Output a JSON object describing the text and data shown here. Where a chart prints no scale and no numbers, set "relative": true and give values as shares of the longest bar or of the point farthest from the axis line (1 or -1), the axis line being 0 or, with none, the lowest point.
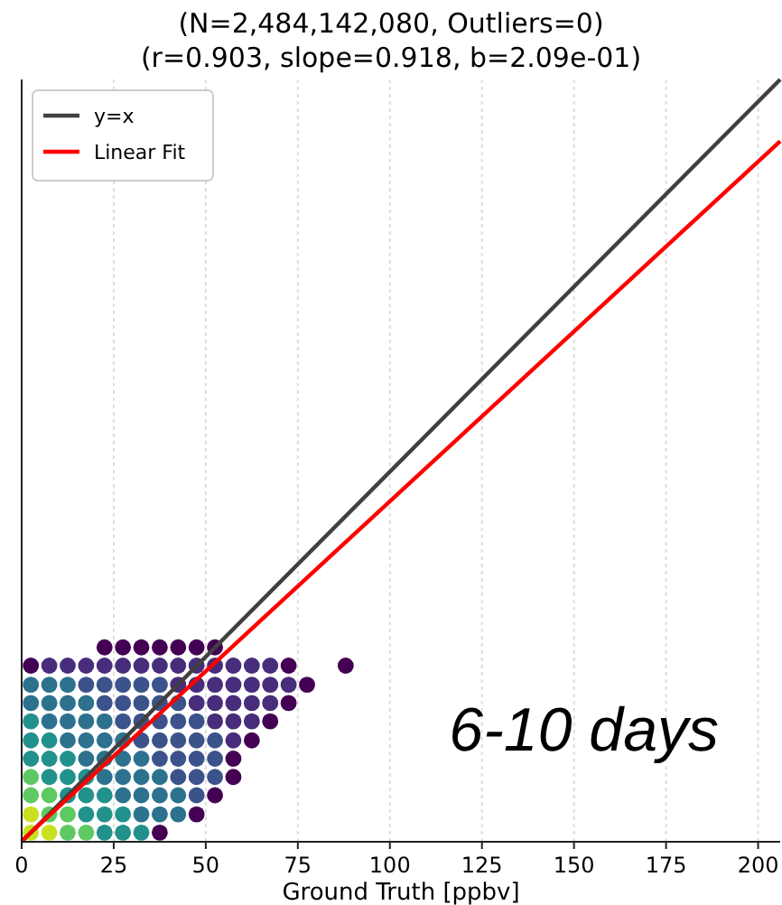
{
  "chart_data": {
    "type": "scatter",
    "title": "(N=2,484,142,080, Outliers=0)",
    "subtitle": "(r=0.903, slope=0.918, b=2.09e-01)",
    "xlabel": "Ground Truth [ppbv]",
    "annotations": [
      "6-10 days"
    ],
    "xlim": [
      0,
      206
    ],
    "xticks": [
      0,
      25,
      50,
      75,
      100,
      125,
      150,
      175,
      200
    ],
    "relative": true,
    "grid": "x",
    "legend": "top left",
    "series": [
      {
        "marker": "circle",
        "x": [
          2.5,
          7.5,
          12.5,
          17.5,
          22.5,
          27.5,
          32.5,
          37.5,
          2.5,
          7.5,
          12.5,
          17.5,
          22.5,
          27.5,
          32.5,
          37.5,
          42.5,
          47.5,
          2.5,
          7.5,
          12.5,
          17.5,
          22.5,
          27.5,
          32.5,
          37.5,
          42.5,
          47.5,
          52.5,
          2.5,
          7.5,
          12.5,
          17.5,
          22.5,
          27.5,
          32.5,
          37.5,
          42.5,
          47.5,
          52.5,
          57.5,
          2.5,
          7.5,
          12.5,
          17.5,
          22.5,
          27.5,
          32.5,
          37.5,
          42.5,
          47.5,
          52.5,
          57.5,
          2.5,
          7.5,
          12.5,
          17.5,
          22.5,
          27.5,
          32.5,
          37.5,
          42.5,
          47.5,
          52.5,
          57.5,
          62.5,
          2.5,
          7.5,
          12.5,
          17.5,
          22.5,
          27.5,
          32.5,
          37.5,
          42.5,
          47.5,
          52.5,
          57.5,
          62.5,
          67.5,
          2.5,
          7.5,
          12.5,
          17.5,
          22.5,
          27.5,
          32.5,
          37.5,
          42.5,
          47.5,
          52.5,
          57.5,
          62.5,
          67.5,
          72.5,
          2.5,
          7.5,
          12.5,
          17.5,
          22.5,
          27.5,
          32.5,
          37.5,
          42.5,
          47.5,
          52.5,
          57.5,
          62.5,
          67.5,
          72.5,
          77.5,
          2.5,
          7.5,
          12.5,
          17.5,
          22.5,
          27.5,
          32.5,
          37.5,
          42.5,
          47.5,
          52.5,
          57.5,
          62.5,
          67.5,
          72.5,
          22.5,
          27.5,
          32.5,
          37.5,
          42.5,
          47.5,
          52.5,
          88
        ],
        "values": [
          0.012,
          0.012,
          0.012,
          0.012,
          0.012,
          0.012,
          0.012,
          0.012,
          0.036,
          0.036,
          0.036,
          0.036,
          0.036,
          0.036,
          0.036,
          0.036,
          0.036,
          0.036,
          0.061,
          0.061,
          0.061,
          0.061,
          0.061,
          0.061,
          0.061,
          0.061,
          0.061,
          0.061,
          0.061,
          0.085,
          0.085,
          0.085,
          0.085,
          0.085,
          0.085,
          0.085,
          0.085,
          0.085,
          0.085,
          0.085,
          0.085,
          0.109,
          0.109,
          0.109,
          0.109,
          0.109,
          0.109,
          0.109,
          0.109,
          0.109,
          0.109,
          0.109,
          0.109,
          0.133,
          0.133,
          0.133,
          0.133,
          0.133,
          0.133,
          0.133,
          0.133,
          0.133,
          0.133,
          0.133,
          0.133,
          0.133,
          0.158,
          0.158,
          0.158,
          0.158,
          0.158,
          0.158,
          0.158,
          0.158,
          0.158,
          0.158,
          0.158,
          0.158,
          0.158,
          0.158,
          0.182,
          0.182,
          0.182,
          0.182,
          0.182,
          0.182,
          0.182,
          0.182,
          0.182,
          0.182,
          0.182,
          0.182,
          0.182,
          0.182,
          0.182,
          0.206,
          0.206,
          0.206,
          0.206,
          0.206,
          0.206,
          0.206,
          0.206,
          0.206,
          0.206,
          0.206,
          0.206,
          0.206,
          0.206,
          0.206,
          0.206,
          0.231,
          0.231,
          0.231,
          0.231,
          0.231,
          0.231,
          0.231,
          0.231,
          0.231,
          0.231,
          0.231,
          0.231,
          0.231,
          0.231,
          0.231,
          0.255,
          0.255,
          0.255,
          0.255,
          0.255,
          0.255,
          0.255,
          0.231
        ],
        "colors": [
          "#c8e020",
          "#c8e020",
          "#5ec962",
          "#5ec962",
          "#21918c",
          "#21918c",
          "#21918c",
          "#440154",
          "#c8e020",
          "#5ec962",
          "#5ec962",
          "#21918c",
          "#21918c",
          "#21918c",
          "#2c728e",
          "#2c728e",
          "#2c728e",
          "#440154",
          "#5ec962",
          "#5ec962",
          "#21918c",
          "#21918c",
          "#21918c",
          "#2c728e",
          "#2c728e",
          "#2c728e",
          "#2c728e",
          "#3b528b",
          "#440154",
          "#5ec962",
          "#21918c",
          "#21918c",
          "#21918c",
          "#2c728e",
          "#2c728e",
          "#2c728e",
          "#2c728e",
          "#3b528b",
          "#3b528b",
          "#3b528b",
          "#440154",
          "#21918c",
          "#21918c",
          "#21918c",
          "#2c728e",
          "#2c728e",
          "#2c728e",
          "#2c728e",
          "#3b528b",
          "#3b528b",
          "#3b528b",
          "#3b528b",
          "#440154",
          "#21918c",
          "#21918c",
          "#2c728e",
          "#2c728e",
          "#2c728e",
          "#2c728e",
          "#3b528b",
          "#3b528b",
          "#3b528b",
          "#3b528b",
          "#3b528b",
          "#472d7b",
          "#440154",
          "#21918c",
          "#2c728e",
          "#2c728e",
          "#2c728e",
          "#2c728e",
          "#3b528b",
          "#3b528b",
          "#3b528b",
          "#3b528b",
          "#3b528b",
          "#472d7b",
          "#472d7b",
          "#472d7b",
          "#440154",
          "#2c728e",
          "#2c728e",
          "#2c728e",
          "#2c728e",
          "#3b528b",
          "#3b528b",
          "#3b528b",
          "#3b528b",
          "#3b528b",
          "#472d7b",
          "#472d7b",
          "#472d7b",
          "#472d7b",
          "#472d7b",
          "#440154",
          "#2c728e",
          "#2c728e",
          "#2c728e",
          "#3b528b",
          "#3b528b",
          "#3b528b",
          "#3b528b",
          "#3b528b",
          "#472d7b",
          "#472d7b",
          "#472d7b",
          "#472d7b",
          "#472d7b",
          "#472d7b",
          "#472d7b",
          "#440154",
          "#440154",
          "#472d7b",
          "#472d7b",
          "#472d7b",
          "#472d7b",
          "#472d7b",
          "#472d7b",
          "#472d7b",
          "#472d7b",
          "#472d7b",
          "#472d7b",
          "#472d7b",
          "#472d7b",
          "#472d7b",
          "#440154",
          "#440154",
          "#440154",
          "#440154",
          "#440154",
          "#440154",
          "#440154",
          "#440154",
          "#440154"
        ]
      },
      {
        "type": "line",
        "name": "y=x",
        "color": "#404040",
        "marker": "none",
        "line_style": "solid",
        "x": [
          0,
          206
        ],
        "values": [
          0,
          1
        ]
      },
      {
        "type": "line",
        "name": "Linear Fit",
        "color": "#ff0000",
        "marker": "none",
        "line_style": "solid",
        "x": [
          0,
          206
        ],
        "values": [
          0.001,
          0.919
        ]
      }
    ]
  }
}
